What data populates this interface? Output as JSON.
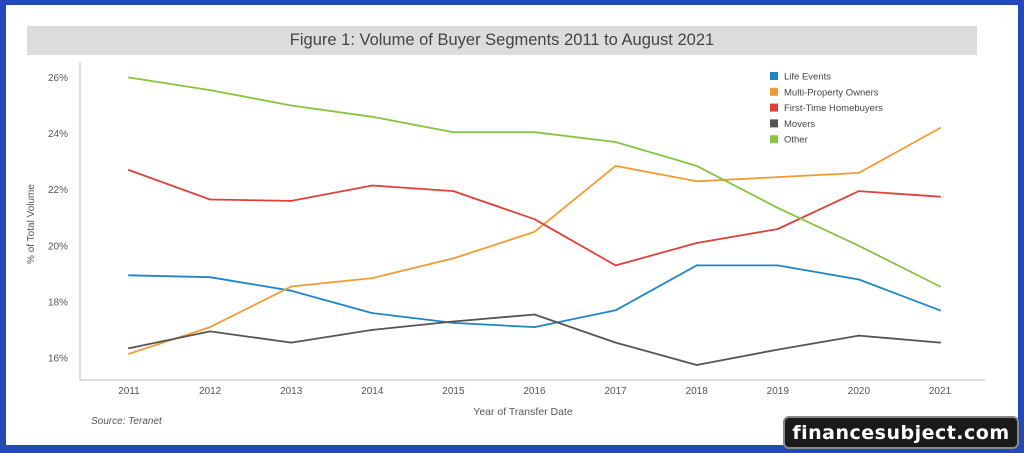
{
  "chart_data": {
    "type": "line",
    "title": "Figure 1: Volume of Buyer Segments 2011 to August 2021",
    "xlabel": "Year of Transfer Date",
    "ylabel": "% of Total Volume",
    "x": [
      "2011",
      "2012",
      "2013",
      "2014",
      "2015",
      "2016",
      "2017",
      "2018",
      "2019",
      "2020",
      "2021"
    ],
    "yticks": [
      "16%",
      "18%",
      "20%",
      "22%",
      "24%",
      "26%"
    ],
    "ylim": [
      15.3,
      26.4
    ],
    "grid": false,
    "legend_position": "top-right",
    "series": [
      {
        "name": "Life Events",
        "color": "#1f86c6",
        "values": [
          18.95,
          18.88,
          18.4,
          17.6,
          17.25,
          17.1,
          17.7,
          19.3,
          19.3,
          18.8,
          17.7
        ]
      },
      {
        "name": "Multi-Property Owners",
        "color": "#f39a34",
        "values": [
          16.15,
          17.1,
          18.55,
          18.85,
          19.55,
          20.5,
          22.85,
          22.3,
          22.45,
          22.6,
          24.2
        ]
      },
      {
        "name": "First-Time Homebuyers",
        "color": "#e0403a",
        "values": [
          22.7,
          21.65,
          21.6,
          22.15,
          21.95,
          20.95,
          19.3,
          20.1,
          20.6,
          21.95,
          21.75
        ]
      },
      {
        "name": "Movers",
        "color": "#555555",
        "values": [
          16.35,
          16.95,
          16.55,
          17.0,
          17.3,
          17.55,
          16.55,
          15.75,
          16.3,
          16.8,
          16.55
        ]
      },
      {
        "name": "Other",
        "color": "#86c441",
        "values": [
          26.0,
          25.55,
          25.0,
          24.6,
          24.05,
          24.05,
          23.7,
          22.85,
          21.35,
          20.0,
          18.55
        ]
      }
    ],
    "source": "Source: Teranet"
  },
  "watermark": "financesubject.com"
}
